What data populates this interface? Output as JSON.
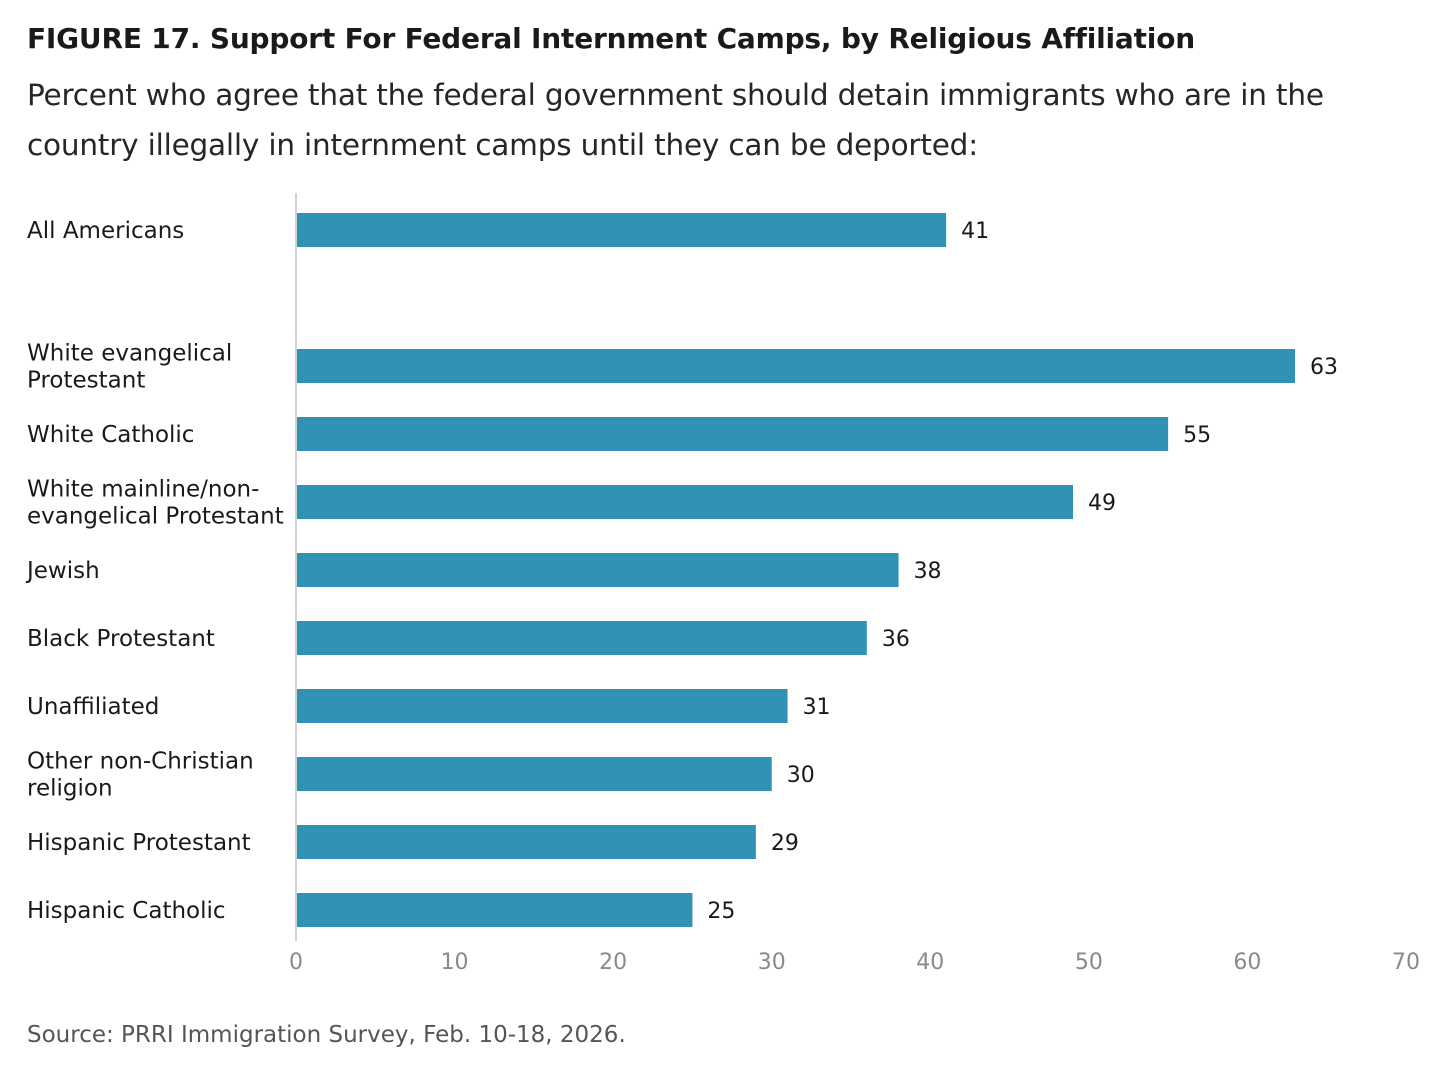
{
  "figure_label": "FIGURE 17.  Support For Federal Internment Camps, by Religious Affiliation",
  "subtitle": "Percent who agree that the federal government should detain immigrants who are in the country illegally in internment camps until they can be deported:",
  "source": "Source: PRRI Immigration Survey, Feb. 10-18, 2026.",
  "colors": {
    "bar": "#3093b3",
    "axis": "#d3d3d3"
  },
  "chart_data": {
    "type": "bar",
    "orientation": "horizontal",
    "categories": [
      [
        "All Americans"
      ],
      [
        "White evangelical",
        "Protestant"
      ],
      [
        "White Catholic"
      ],
      [
        "White mainline/non-",
        "evangelical Protestant"
      ],
      [
        "Jewish"
      ],
      [
        "Black Protestant"
      ],
      [
        "Unaffiliated"
      ],
      [
        "Other non-Christian",
        "religion"
      ],
      [
        "Hispanic Protestant"
      ],
      [
        "Hispanic Catholic"
      ]
    ],
    "values": [
      41,
      63,
      55,
      49,
      38,
      36,
      31,
      30,
      29,
      25
    ],
    "data_labels": [
      "41",
      "63",
      "55",
      "49",
      "38",
      "36",
      "31",
      "30",
      "29",
      "25"
    ],
    "xlim": [
      0,
      70
    ],
    "ticks": [
      0,
      10,
      20,
      30,
      40,
      50,
      60,
      70
    ],
    "tick_labels": [
      "0",
      "10",
      "20",
      "30",
      "40",
      "50",
      "60",
      "70"
    ],
    "grid": false,
    "legend": "none"
  }
}
